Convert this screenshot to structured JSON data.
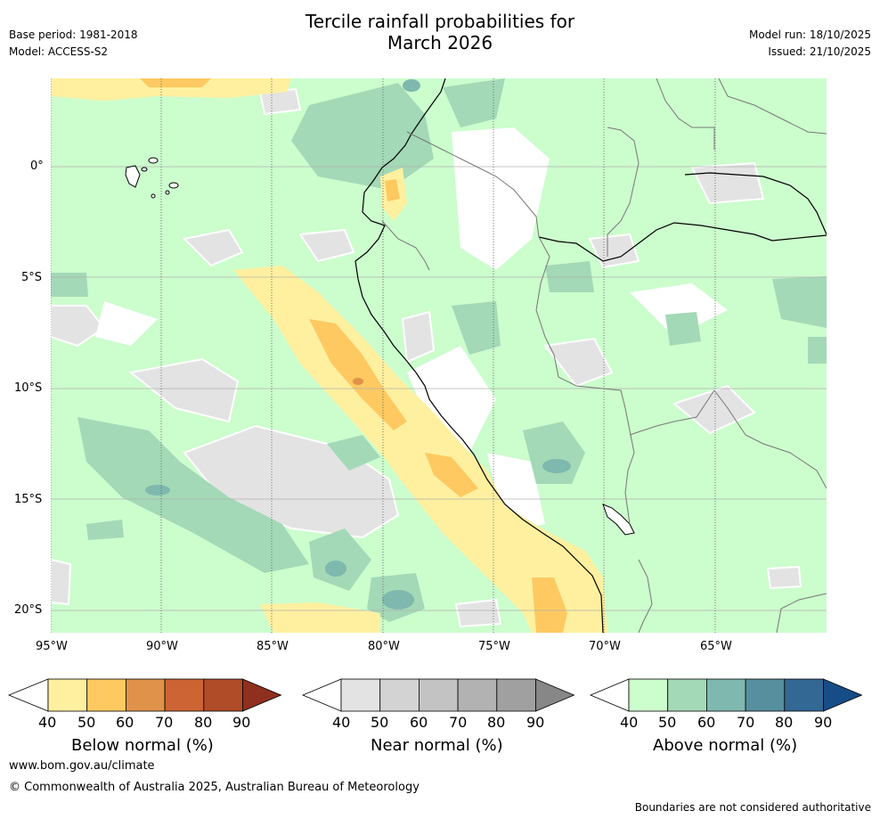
{
  "header": {
    "title_line1": "Tercile rainfall probabilities for",
    "title_line2": "March 2026",
    "base_period": "Base period: 1981-2018",
    "model": "Model: ACCESS-S2",
    "model_run": "Model run: 18/10/2025",
    "issued": "Issued: 21/10/2025"
  },
  "map": {
    "lat_ticks": [
      "0°",
      "5°S",
      "10°S",
      "15°S",
      "20°S"
    ],
    "lon_ticks": [
      "95°W",
      "90°W",
      "85°W",
      "80°W",
      "75°W",
      "70°W",
      "65°W"
    ]
  },
  "colorbars": [
    {
      "name": "below",
      "label": "Below normal (%)",
      "ticks": [
        "40",
        "50",
        "60",
        "70",
        "80",
        "90"
      ],
      "colors": [
        "#fff0a0",
        "#fec961",
        "#e0924a",
        "#cd6433",
        "#b04c28",
        "#8f2f1e"
      ]
    },
    {
      "name": "near",
      "label": "Near normal (%)",
      "ticks": [
        "40",
        "50",
        "60",
        "70",
        "80",
        "90"
      ],
      "colors": [
        "#e3e3e3",
        "#d3d3d3",
        "#c3c3c3",
        "#b2b2b2",
        "#a0a0a0",
        "#878787"
      ]
    },
    {
      "name": "above",
      "label": "Above normal (%)",
      "ticks": [
        "40",
        "50",
        "60",
        "70",
        "80",
        "90"
      ],
      "colors": [
        "#ccfdcd",
        "#a3d9b6",
        "#7eb8af",
        "#578f9f",
        "#336895",
        "#174d86"
      ]
    }
  ],
  "footer": {
    "website": "www.bom.gov.au/climate",
    "copyright": "© Commonwealth of Australia 2025, Australian Bureau of Meteorology",
    "disclaimer": "Boundaries are not considered authoritative"
  }
}
